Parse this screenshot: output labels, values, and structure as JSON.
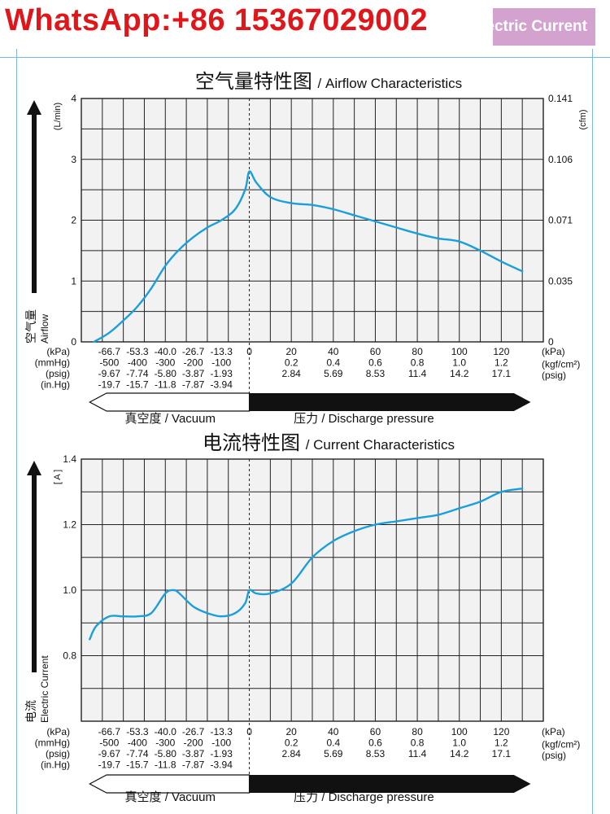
{
  "watermark": {
    "contact": "WhatsApp:+86 15367029002",
    "tag": "ectric Current",
    "tag_color": "#d4a2cf",
    "contact_color": "#e0161b"
  },
  "colors": {
    "curve": "#1a9fdb",
    "grid": "#222222",
    "arrow_fill": "#111111"
  },
  "scale_rows": {
    "vacuum": {
      "units": [
        "(kPa)",
        "(mmHg)",
        "(psig)",
        "(in.Hg)"
      ],
      "rows": [
        [
          "-66.7",
          "-53.3",
          "-40.0",
          "-26.7",
          "-13.3"
        ],
        [
          "-500",
          "-400",
          "-300",
          "-200",
          "-100"
        ],
        [
          "-9.67",
          "-7.74",
          "-5.80",
          "-3.87",
          "-1.93"
        ],
        [
          "-19.7",
          "-15.7",
          "-11.8",
          "-7.87",
          "-3.94"
        ]
      ]
    },
    "zero": "0",
    "pressure": {
      "units": [
        "(kPa)",
        "(kgf/cm²)",
        "(psig)"
      ],
      "rows": [
        [
          "20",
          "40",
          "60",
          "80",
          "100",
          "120"
        ],
        [
          "0.2",
          "0.4",
          "0.6",
          "0.8",
          "1.0",
          "1.2"
        ],
        [
          "2.84",
          "5.69",
          "8.53",
          "11.4",
          "14.2",
          "17.1"
        ]
      ]
    },
    "vacuum_label": "真空度 / Vacuum",
    "pressure_label": "压力 / Discharge pressure"
  },
  "chart_data": [
    {
      "type": "line",
      "title_cn": "空气量特性图",
      "title_en": "/ Airflow Characteristics",
      "ylabel_unit": "(L/min)",
      "ylabel_cn": "空气量",
      "ylabel_en": "Airflow",
      "y2label_unit": "(cfm)",
      "ylim": [
        0,
        4
      ],
      "yticks": [
        "0",
        "1",
        "2",
        "3",
        "4"
      ],
      "y2ticks": [
        {
          "value": 0,
          "label": "0"
        },
        {
          "value": 1,
          "label": "0.035"
        },
        {
          "value": 2,
          "label": "0.071"
        },
        {
          "value": 3,
          "label": "0.106"
        },
        {
          "value": 4,
          "label": "0.141"
        }
      ],
      "xlim": [
        -80,
        140
      ],
      "xunit": "kPa",
      "series": [
        {
          "x": [
            -74,
            -66.7,
            -60,
            -53.3,
            -46.7,
            -40,
            -33.3,
            -26.7,
            -20,
            -13.3,
            -6.7,
            -2,
            0,
            3.3,
            10,
            20,
            30,
            40,
            50,
            60,
            70,
            80,
            90,
            100,
            110,
            120,
            130
          ],
          "y": [
            0,
            0.15,
            0.35,
            0.58,
            0.88,
            1.25,
            1.52,
            1.72,
            1.88,
            2.0,
            2.18,
            2.5,
            2.8,
            2.62,
            2.38,
            2.28,
            2.25,
            2.18,
            2.08,
            1.98,
            1.88,
            1.78,
            1.7,
            1.65,
            1.5,
            1.32,
            1.16
          ]
        }
      ]
    },
    {
      "type": "line",
      "title_cn": "电流特性图",
      "title_en": "/ Current Characteristics",
      "ylabel_unit": "[ A ]",
      "ylabel_cn": "电流",
      "ylabel_en": "Electric Current",
      "ylim": [
        0.6,
        1.4
      ],
      "yticks": [
        {
          "value": 0.8,
          "label": "0.8"
        },
        {
          "value": 1.0,
          "label": "1.0"
        },
        {
          "value": 1.2,
          "label": "1.2"
        },
        {
          "value": 1.4,
          "label": "1.4"
        }
      ],
      "xlim": [
        -80,
        140
      ],
      "xunit": "kPa",
      "series": [
        {
          "x": [
            -76,
            -73,
            -66.7,
            -60,
            -53.3,
            -46.7,
            -40,
            -36,
            -33.3,
            -26.7,
            -20,
            -13.3,
            -6.7,
            -2,
            0,
            3.3,
            10,
            20,
            30,
            40,
            50,
            60,
            70,
            80,
            90,
            100,
            110,
            120,
            130
          ],
          "y": [
            0.85,
            0.89,
            0.92,
            0.92,
            0.92,
            0.93,
            0.99,
            1.0,
            0.99,
            0.95,
            0.93,
            0.92,
            0.93,
            0.96,
            1.0,
            0.99,
            0.99,
            1.02,
            1.1,
            1.15,
            1.18,
            1.2,
            1.21,
            1.22,
            1.23,
            1.25,
            1.27,
            1.3,
            1.31
          ]
        }
      ]
    }
  ]
}
